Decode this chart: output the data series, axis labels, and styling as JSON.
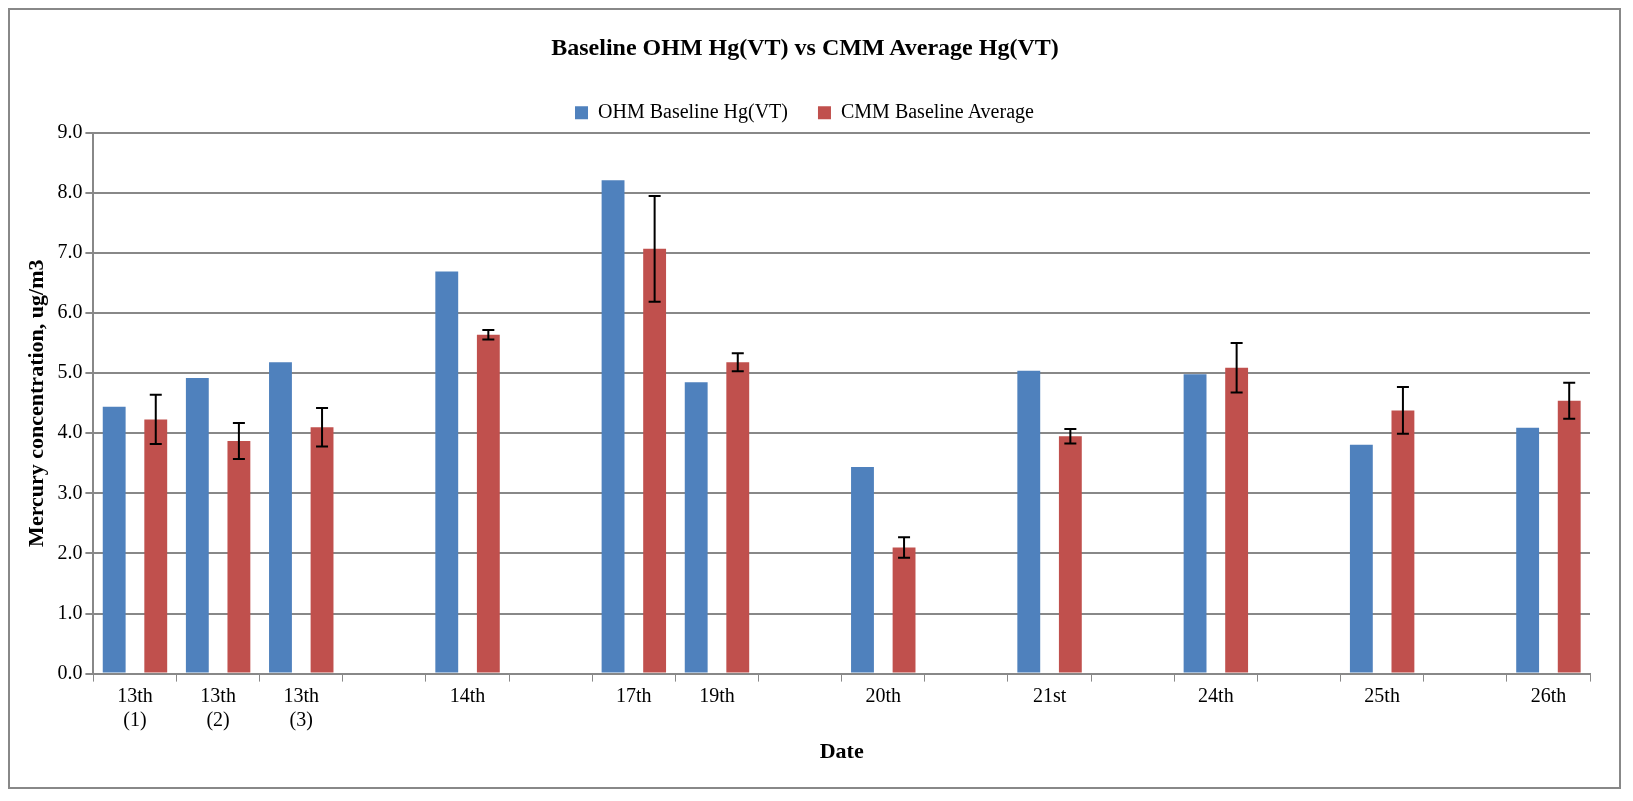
{
  "chart_data": {
    "type": "bar",
    "title": "Baseline OHM Hg(VT) vs CMM Average Hg(VT)",
    "xlabel": "Date",
    "ylabel": "Mercury concentration, ug/m3",
    "categories": [
      "13th\n(1)",
      "13th\n(2)",
      "13th\n(3)",
      null,
      "14th",
      null,
      "17th",
      "19th",
      null,
      "20th",
      null,
      "21st",
      null,
      "24th",
      null,
      "25th",
      null,
      "26th"
    ],
    "series": [
      {
        "name": "OHM Baseline Hg(VT)",
        "color": "#4f81bd",
        "values": [
          4.44,
          4.92,
          5.18,
          null,
          6.69,
          null,
          8.21,
          4.85,
          null,
          3.44,
          null,
          5.04,
          null,
          4.98,
          null,
          3.81,
          null,
          4.09
        ]
      },
      {
        "name": "CMM Baseline Average",
        "color": "#c0504d",
        "values": [
          4.23,
          3.87,
          4.1,
          null,
          5.64,
          null,
          7.07,
          5.18,
          null,
          2.1,
          null,
          3.95,
          null,
          5.09,
          null,
          4.38,
          null,
          4.54
        ],
        "errors": [
          0.41,
          0.3,
          0.32,
          null,
          0.08,
          null,
          0.88,
          0.15,
          null,
          0.17,
          null,
          0.12,
          null,
          0.41,
          null,
          0.39,
          null,
          0.3
        ]
      }
    ],
    "ylim": [
      0,
      9
    ],
    "yticks": [
      {
        "value": 0,
        "label": "0.0"
      },
      {
        "value": 1,
        "label": "1.0"
      },
      {
        "value": 2,
        "label": "2.0"
      },
      {
        "value": 3,
        "label": "3.0"
      },
      {
        "value": 4,
        "label": "4.0"
      },
      {
        "value": 5,
        "label": "5.0"
      },
      {
        "value": 6,
        "label": "6.0"
      },
      {
        "value": 7,
        "label": "7.0"
      },
      {
        "value": 8,
        "label": "8.0"
      },
      {
        "value": 9,
        "label": "9.0"
      }
    ],
    "grid": "y",
    "legend": "top"
  }
}
